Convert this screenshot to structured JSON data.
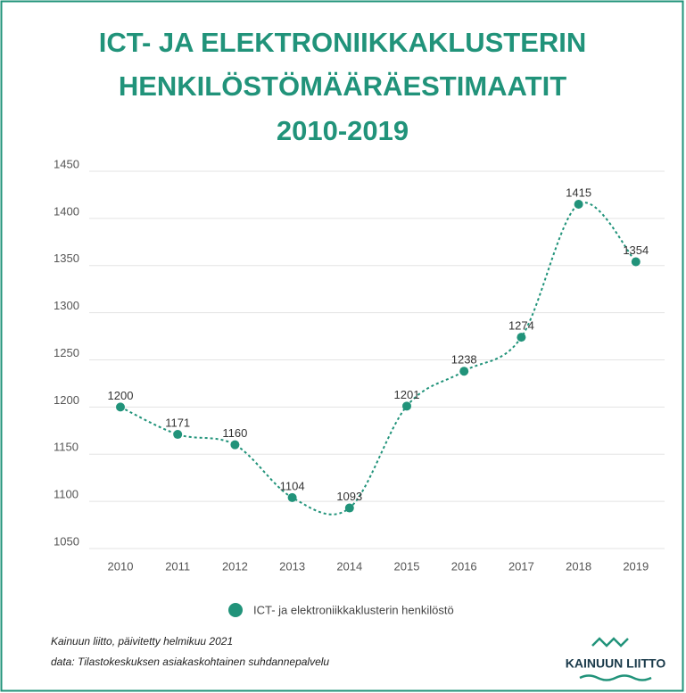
{
  "chart_data": {
    "type": "line",
    "title": [
      "ICT- JA ELEKTRONIIKKAKLUSTERIN",
      "HENKILÖSTÖMÄÄRÄESTIMAATIT",
      "2010-2019"
    ],
    "categories": [
      "2010",
      "2011",
      "2012",
      "2013",
      "2014",
      "2015",
      "2016",
      "2017",
      "2018",
      "2019"
    ],
    "series": [
      {
        "name": "ICT- ja elektroniikkaklusterin henkilöstö",
        "color": "#21937a",
        "values": [
          1200,
          1171,
          1160,
          1104,
          1093,
          1201,
          1238,
          1274,
          1415,
          1354
        ]
      }
    ],
    "ylim": [
      1050,
      1450
    ],
    "yticks": [
      1050,
      1100,
      1150,
      1200,
      1250,
      1300,
      1350,
      1400,
      1450
    ],
    "grid": true,
    "legend": "bottom",
    "footer": [
      "Kainuun liitto, päivitetty helmikuu 2021",
      "data: Tilastokeskuksen asiakaskohtainen suhdannepalvelu"
    ],
    "logo": "KAINUUN LIITTO"
  }
}
